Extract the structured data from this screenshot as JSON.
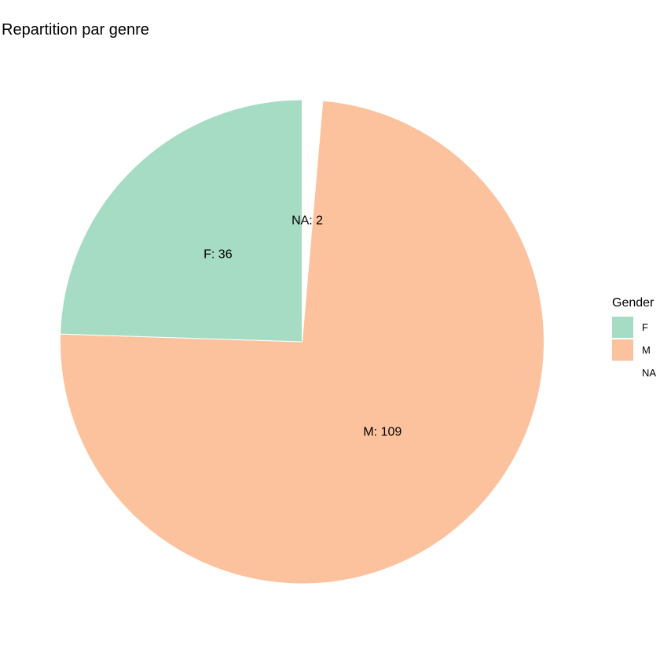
{
  "chart_data": {
    "type": "pie",
    "title": "Repartition par genre",
    "legend_title": "Gender",
    "legend_position": "right",
    "start_angle_degrees": 0,
    "direction": "clockwise",
    "slices": [
      {
        "category": "NA",
        "value": 2,
        "label": "NA: 2",
        "color": "#ffffff"
      },
      {
        "category": "M",
        "value": 109,
        "label": "M: 109",
        "color": "#fcc29e"
      },
      {
        "category": "F",
        "value": 36,
        "label": "F: 36",
        "color": "#a5dcc3"
      }
    ],
    "legend": [
      {
        "label": "F",
        "color": "#a5dcc3"
      },
      {
        "label": "M",
        "color": "#fcc29e"
      },
      {
        "label": "NA",
        "color": "#ffffff"
      }
    ]
  }
}
